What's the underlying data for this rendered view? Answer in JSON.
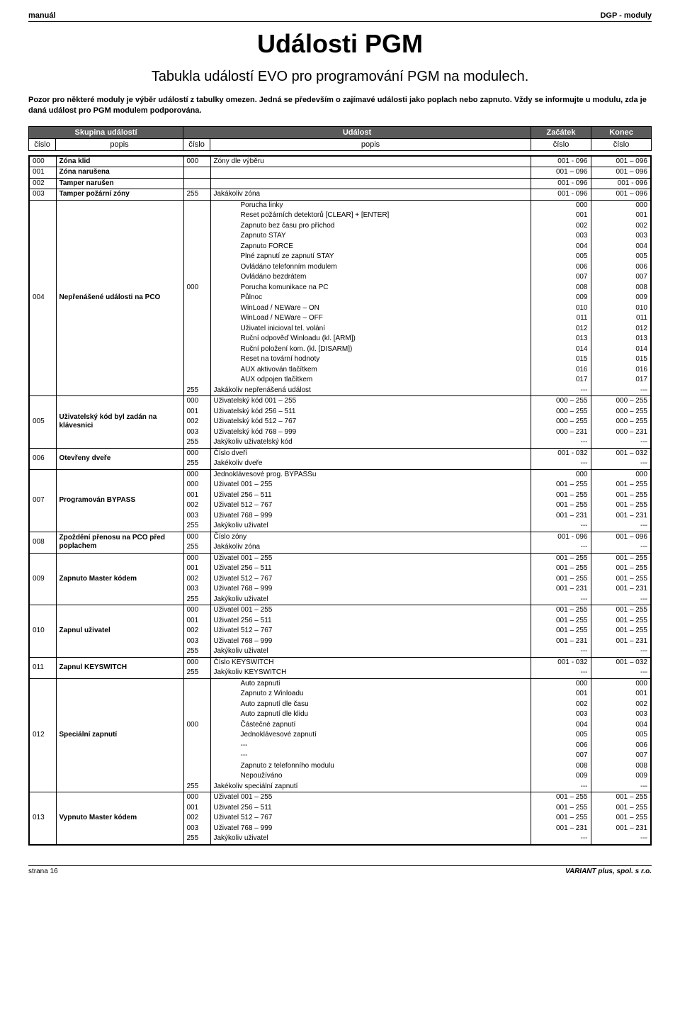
{
  "header": {
    "left": "manuál",
    "right": "DGP - moduly"
  },
  "title": "Události PGM",
  "subtitle": "Tabukla událostí EVO pro programování PGM na modulech.",
  "intro": "Pozor pro některé moduly je výběr událostí z tabulky omezen. Jedná se především o zajímavé události jako poplach nebo zapnuto. Vždy se informujte u modulu, zda je daná událost pro PGM modulem podporována.",
  "th": {
    "group": "Skupina událostí",
    "event": "Událost",
    "start": "Začátek",
    "end": "Konec",
    "num": "číslo",
    "desc": "popis"
  },
  "groups": [
    {
      "num": "000",
      "desc": "Zóna klid",
      "rows": [
        {
          "en": "000",
          "ep": "Zóny dle výběru",
          "s": "001 - 096",
          "e": "001 – 096"
        }
      ]
    },
    {
      "num": "001",
      "desc": "Zóna narušena",
      "rows": [
        {
          "en": "",
          "ep": "",
          "s": "001 – 096",
          "e": "001 – 096"
        }
      ]
    },
    {
      "num": "002",
      "desc": "Tamper narušen",
      "rows": [
        {
          "en": "",
          "ep": "",
          "s": "001 - 096",
          "e": "001 - 096"
        }
      ]
    },
    {
      "num": "003",
      "desc": "Tamper požární zóny",
      "rows": [
        {
          "en": "255",
          "ep": "Jakákoliv zóna",
          "s": "001 - 096",
          "e": "001 – 096"
        }
      ]
    },
    {
      "num": "004",
      "desc": "Nepřenášené události na PCO",
      "rows": [
        {
          "en": "",
          "ep": "Porucha linky",
          "s": "000",
          "e": "000",
          "pad": true
        },
        {
          "en": "",
          "ep": "Reset požárních detektorů   [CLEAR] + [ENTER]",
          "s": "001",
          "e": "001",
          "pad": true
        },
        {
          "en": "",
          "ep": "Zapnuto bez času pro příchod",
          "s": "002",
          "e": "002",
          "pad": true
        },
        {
          "en": "",
          "ep": "Zapnuto STAY",
          "s": "003",
          "e": "003",
          "pad": true
        },
        {
          "en": "",
          "ep": "Zapnuto FORCE",
          "s": "004",
          "e": "004",
          "pad": true
        },
        {
          "en": "",
          "ep": "Plné zapnutí ze zapnutí STAY",
          "s": "005",
          "e": "005",
          "pad": true
        },
        {
          "en": "",
          "ep": "Ovládáno telefonním modulem",
          "s": "006",
          "e": "006",
          "pad": true
        },
        {
          "en": "",
          "ep": "Ovládáno bezdrátem",
          "s": "007",
          "e": "007",
          "pad": true
        },
        {
          "en": "000",
          "ep": "Porucha komunikace na PC",
          "s": "008",
          "e": "008",
          "pad": true
        },
        {
          "en": "",
          "ep": "Půlnoc",
          "s": "009",
          "e": "009",
          "pad": true
        },
        {
          "en": "",
          "ep": "WinLoad / NEWare – ON",
          "s": "010",
          "e": "010",
          "pad": true
        },
        {
          "en": "",
          "ep": "WinLoad / NEWare – OFF",
          "s": "011",
          "e": "011",
          "pad": true
        },
        {
          "en": "",
          "ep": "Uživatel inicioval tel. volání",
          "s": "012",
          "e": "012",
          "pad": true
        },
        {
          "en": "",
          "ep": "Ruční odpověď Winloadu (kl. [ARM])",
          "s": "013",
          "e": "013",
          "pad": true
        },
        {
          "en": "",
          "ep": "Ruční položení kom. (kl. [DISARM])",
          "s": "014",
          "e": "014",
          "pad": true
        },
        {
          "en": "",
          "ep": "Reset na tovární hodnoty",
          "s": "015",
          "e": "015",
          "pad": true
        },
        {
          "en": "",
          "ep": "AUX aktivován tlačítkem",
          "s": "016",
          "e": "016",
          "pad": true
        },
        {
          "en": "",
          "ep": "AUX odpojen tlačítkem",
          "s": "017",
          "e": "017",
          "pad": true
        },
        {
          "en": "255",
          "ep": "Jakákoliv nepřenášená událost",
          "s": "---",
          "e": "---"
        }
      ]
    },
    {
      "num": "005",
      "desc": "Uživatelský kód byl zadán na klávesnici",
      "rows": [
        {
          "en": "000",
          "ep": "Uživatelský kód 001 – 255",
          "s": "000 – 255",
          "e": "000 – 255"
        },
        {
          "en": "001",
          "ep": "Uživatelský kód 256 – 511",
          "s": "000 – 255",
          "e": "000 – 255"
        },
        {
          "en": "002",
          "ep": "Uživatelský kód 512 – 767",
          "s": "000 – 255",
          "e": "000 – 255"
        },
        {
          "en": "003",
          "ep": "Uživatelský kód 768 – 999",
          "s": "000 – 231",
          "e": "000 – 231"
        },
        {
          "en": "255",
          "ep": "Jakýkoliv uživatelský kód",
          "s": "---",
          "e": "---"
        }
      ]
    },
    {
      "num": "006",
      "desc": "Otevřeny dveře",
      "rows": [
        {
          "en": "000",
          "ep": "Číslo dveří",
          "s": "001 - 032",
          "e": "001 – 032"
        },
        {
          "en": "255",
          "ep": "Jakékoliv dveře",
          "s": "---",
          "e": "---"
        }
      ]
    },
    {
      "num": "007",
      "desc": "Programován BYPASS",
      "rows": [
        {
          "en": "000",
          "ep": "Jednoklávesové prog. BYPASSu",
          "s": "000",
          "e": "000"
        },
        {
          "en": "000",
          "ep": "Uživatel 001 – 255",
          "s": "001 – 255",
          "e": "001 – 255"
        },
        {
          "en": "001",
          "ep": "Uživatel 256 – 511",
          "s": "001 – 255",
          "e": "001 – 255"
        },
        {
          "en": "002",
          "ep": "Uživatel 512 – 767",
          "s": "001 – 255",
          "e": "001 – 255"
        },
        {
          "en": "003",
          "ep": "Uživatel 768 – 999",
          "s": "001 – 231",
          "e": "001 – 231"
        },
        {
          "en": "255",
          "ep": "Jakýkoliv uživatel",
          "s": "---",
          "e": "---"
        }
      ]
    },
    {
      "num": "008",
      "desc": "Zpoždění přenosu na PCO před poplachem",
      "rows": [
        {
          "en": "000",
          "ep": "Číslo zóny",
          "s": "001 - 096",
          "e": "001 – 096"
        },
        {
          "en": "255",
          "ep": "Jakákoliv zóna",
          "s": "---",
          "e": "---"
        }
      ]
    },
    {
      "num": "009",
      "desc": "Zapnuto Master kódem",
      "rows": [
        {
          "en": "000",
          "ep": "Uživatel 001 – 255",
          "s": "001 – 255",
          "e": "001 – 255"
        },
        {
          "en": "001",
          "ep": "Uživatel 256 – 511",
          "s": "001 – 255",
          "e": "001 – 255"
        },
        {
          "en": "002",
          "ep": "Uživatel 512 – 767",
          "s": "001 – 255",
          "e": "001 – 255"
        },
        {
          "en": "003",
          "ep": "Uživatel 768 – 999",
          "s": "001 – 231",
          "e": "001 – 231"
        },
        {
          "en": "255",
          "ep": "Jakýkoliv uživatel",
          "s": "---",
          "e": "---"
        }
      ]
    },
    {
      "num": "010",
      "desc": "Zapnul uživatel",
      "rows": [
        {
          "en": "000",
          "ep": "Uživatel 001 – 255",
          "s": "001 – 255",
          "e": "001 – 255"
        },
        {
          "en": "001",
          "ep": "Uživatel 256 – 511",
          "s": "001 – 255",
          "e": "001 – 255"
        },
        {
          "en": "002",
          "ep": "Uživatel 512 – 767",
          "s": "001 – 255",
          "e": "001 – 255"
        },
        {
          "en": "003",
          "ep": "Uživatel 768 – 999",
          "s": "001 – 231",
          "e": "001 – 231"
        },
        {
          "en": "255",
          "ep": "Jakýkoliv uživatel",
          "s": "---",
          "e": "---"
        }
      ]
    },
    {
      "num": "011",
      "desc": "Zapnul KEYSWITCH",
      "rows": [
        {
          "en": "000",
          "ep": "Číslo KEYSWITCH",
          "s": "001 - 032",
          "e": "001 – 032"
        },
        {
          "en": "255",
          "ep": "Jakýkoliv KEYSWITCH",
          "s": "---",
          "e": "---"
        }
      ]
    },
    {
      "num": "012",
      "desc": "Speciální zapnutí",
      "rows": [
        {
          "en": "",
          "ep": "Auto zapnutí",
          "s": "000",
          "e": "000",
          "pad": true
        },
        {
          "en": "",
          "ep": "Zapnuto z Winloadu",
          "s": "001",
          "e": "001",
          "pad": true
        },
        {
          "en": "",
          "ep": "Auto zapnutí dle času",
          "s": "002",
          "e": "002",
          "pad": true
        },
        {
          "en": "",
          "ep": "Auto zapnutí dle klidu",
          "s": "003",
          "e": "003",
          "pad": true
        },
        {
          "en": "000",
          "ep": "Částečné zapnutí",
          "s": "004",
          "e": "004",
          "pad": true
        },
        {
          "en": "",
          "ep": "Jednoklávesové zapnutí",
          "s": "005",
          "e": "005",
          "pad": true
        },
        {
          "en": "",
          "ep": "---",
          "s": "006",
          "e": "006",
          "pad": true
        },
        {
          "en": "",
          "ep": "---",
          "s": "007",
          "e": "007",
          "pad": true
        },
        {
          "en": "",
          "ep": "Zapnuto z telefonního modulu",
          "s": "008",
          "e": "008",
          "pad": true
        },
        {
          "en": "",
          "ep": "Nepoužíváno",
          "s": "009",
          "e": "009",
          "pad": true
        },
        {
          "en": "255",
          "ep": "Jakékoliv speciální zapnutí",
          "s": "---",
          "e": "---"
        }
      ]
    },
    {
      "num": "013",
      "desc": "Vypnuto Master kódem",
      "rows": [
        {
          "en": "000",
          "ep": "Uživatel 001 – 255",
          "s": "001 – 255",
          "e": "001 – 255"
        },
        {
          "en": "001",
          "ep": "Uživatel 256 – 511",
          "s": "001 – 255",
          "e": "001 – 255"
        },
        {
          "en": "002",
          "ep": "Uživatel 512 – 767",
          "s": "001 – 255",
          "e": "001 – 255"
        },
        {
          "en": "003",
          "ep": "Uživatel 768 – 999",
          "s": "001 – 231",
          "e": "001 – 231"
        },
        {
          "en": "255",
          "ep": "Jakýkoliv uživatel",
          "s": "---",
          "e": "---"
        }
      ]
    }
  ],
  "footer": {
    "left": "strana 16",
    "right": "VARIANT plus, spol. s r.o."
  }
}
